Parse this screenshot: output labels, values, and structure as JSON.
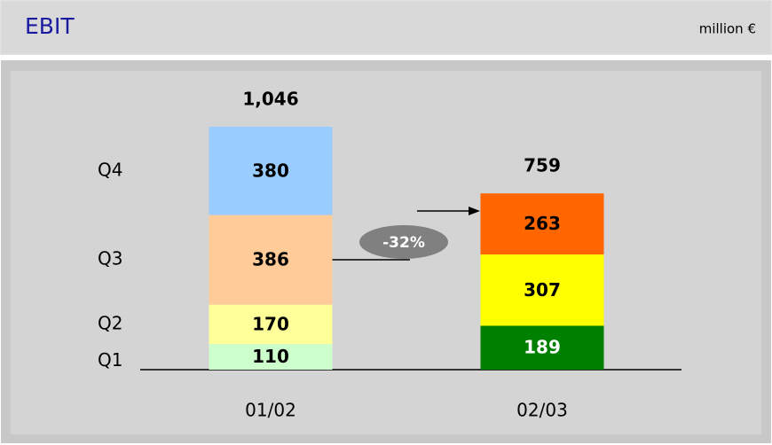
{
  "chart_data": {
    "type": "stacked-bar",
    "title": "EBIT",
    "unit": "million €",
    "categories": [
      "01/02",
      "02/03"
    ],
    "series": [
      {
        "name": "Q1",
        "colors": [
          "#ccffcc",
          "#008000"
        ],
        "values": [
          110,
          189
        ]
      },
      {
        "name": "Q2",
        "colors": [
          "#ffff99",
          "#ffff00"
        ],
        "values": [
          170,
          307
        ]
      },
      {
        "name": "Q3",
        "colors": [
          "#ffcc99",
          "#ff6600"
        ],
        "values": [
          386,
          263
        ]
      },
      {
        "name": "Q4",
        "colors": [
          "#99ccff",
          null
        ],
        "values": [
          380,
          null
        ]
      }
    ],
    "totals": [
      1046,
      759
    ],
    "total_labels": [
      "1,046",
      "759"
    ],
    "annotation": "-32%"
  }
}
